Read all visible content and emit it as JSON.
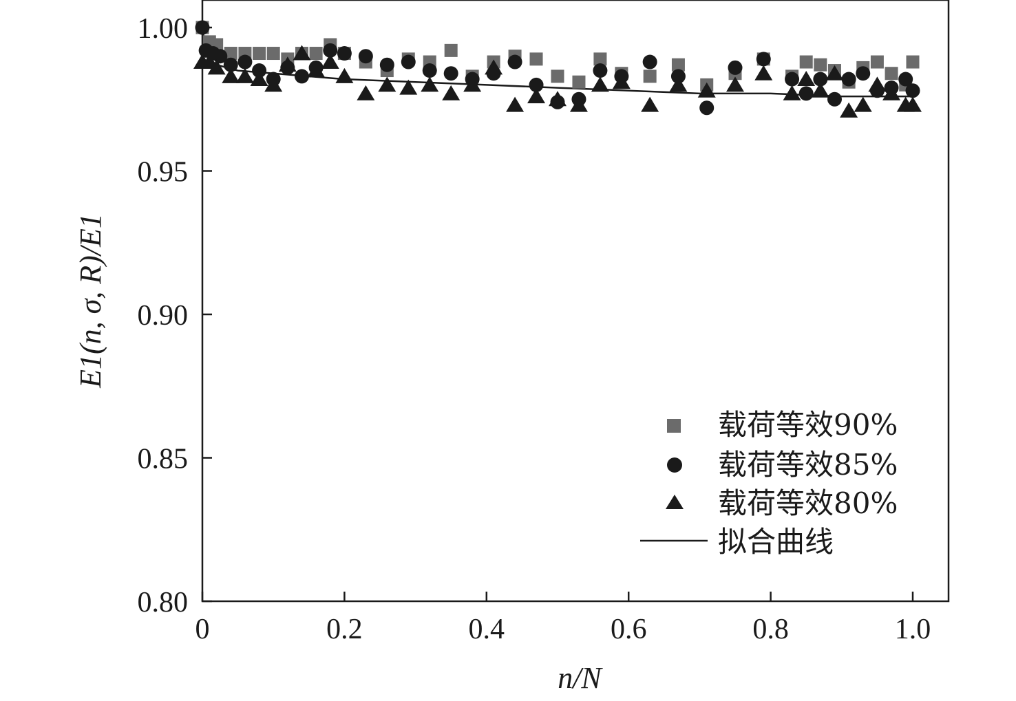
{
  "chart_data": {
    "type": "scatter",
    "xlabel": "n/N",
    "ylabel": "E1(n, σ, R)/E1",
    "xlim": [
      0,
      1.0
    ],
    "ylim": [
      0.8,
      1.0
    ],
    "x_ticks": [
      {
        "value": 0,
        "label": "0"
      },
      {
        "value": 0.2,
        "label": "0.2"
      },
      {
        "value": 0.4,
        "label": "0.4"
      },
      {
        "value": 0.6,
        "label": "0.6"
      },
      {
        "value": 0.8,
        "label": "0.8"
      },
      {
        "value": 1.0,
        "label": "1.0"
      }
    ],
    "y_ticks": [
      {
        "value": 0.8,
        "label": "0.80"
      },
      {
        "value": 0.85,
        "label": "0.85"
      },
      {
        "value": 0.9,
        "label": "0.90"
      },
      {
        "value": 0.95,
        "label": "0.95"
      },
      {
        "value": 1.0,
        "label": "1.00"
      }
    ],
    "grid": false,
    "legend_position": "bottom-right",
    "series": [
      {
        "name": "载荷等效90%",
        "marker": "square",
        "color": "#6b6b6b",
        "points": [
          [
            0.0,
            1.0
          ],
          [
            0.01,
            0.995
          ],
          [
            0.02,
            0.994
          ],
          [
            0.04,
            0.991
          ],
          [
            0.06,
            0.991
          ],
          [
            0.08,
            0.991
          ],
          [
            0.1,
            0.991
          ],
          [
            0.12,
            0.989
          ],
          [
            0.14,
            0.991
          ],
          [
            0.16,
            0.991
          ],
          [
            0.18,
            0.994
          ],
          [
            0.2,
            0.991
          ],
          [
            0.23,
            0.988
          ],
          [
            0.26,
            0.985
          ],
          [
            0.29,
            0.989
          ],
          [
            0.32,
            0.988
          ],
          [
            0.35,
            0.992
          ],
          [
            0.38,
            0.983
          ],
          [
            0.41,
            0.988
          ],
          [
            0.44,
            0.99
          ],
          [
            0.47,
            0.989
          ],
          [
            0.5,
            0.983
          ],
          [
            0.53,
            0.981
          ],
          [
            0.56,
            0.989
          ],
          [
            0.59,
            0.984
          ],
          [
            0.63,
            0.983
          ],
          [
            0.67,
            0.987
          ],
          [
            0.71,
            0.98
          ],
          [
            0.75,
            0.984
          ],
          [
            0.79,
            0.989
          ],
          [
            0.83,
            0.983
          ],
          [
            0.85,
            0.988
          ],
          [
            0.87,
            0.987
          ],
          [
            0.89,
            0.985
          ],
          [
            0.91,
            0.981
          ],
          [
            0.93,
            0.986
          ],
          [
            0.95,
            0.988
          ],
          [
            0.97,
            0.984
          ],
          [
            0.99,
            0.98
          ],
          [
            1.0,
            0.988
          ]
        ]
      },
      {
        "name": "载荷等效85%",
        "marker": "circle",
        "color": "#1a1a1a",
        "points": [
          [
            0.0,
            1.0
          ],
          [
            0.005,
            0.992
          ],
          [
            0.015,
            0.991
          ],
          [
            0.025,
            0.99
          ],
          [
            0.04,
            0.987
          ],
          [
            0.06,
            0.988
          ],
          [
            0.08,
            0.985
          ],
          [
            0.1,
            0.982
          ],
          [
            0.12,
            0.986
          ],
          [
            0.14,
            0.983
          ],
          [
            0.16,
            0.986
          ],
          [
            0.18,
            0.992
          ],
          [
            0.2,
            0.991
          ],
          [
            0.23,
            0.99
          ],
          [
            0.26,
            0.987
          ],
          [
            0.29,
            0.988
          ],
          [
            0.32,
            0.985
          ],
          [
            0.35,
            0.984
          ],
          [
            0.38,
            0.982
          ],
          [
            0.41,
            0.984
          ],
          [
            0.44,
            0.988
          ],
          [
            0.47,
            0.98
          ],
          [
            0.5,
            0.974
          ],
          [
            0.53,
            0.975
          ],
          [
            0.56,
            0.985
          ],
          [
            0.59,
            0.983
          ],
          [
            0.63,
            0.988
          ],
          [
            0.67,
            0.983
          ],
          [
            0.71,
            0.972
          ],
          [
            0.75,
            0.986
          ],
          [
            0.79,
            0.989
          ],
          [
            0.83,
            0.982
          ],
          [
            0.85,
            0.977
          ],
          [
            0.87,
            0.982
          ],
          [
            0.89,
            0.975
          ],
          [
            0.91,
            0.982
          ],
          [
            0.93,
            0.984
          ],
          [
            0.95,
            0.978
          ],
          [
            0.97,
            0.979
          ],
          [
            0.99,
            0.982
          ],
          [
            1.0,
            0.978
          ]
        ]
      },
      {
        "name": "载荷等效80%",
        "marker": "triangle",
        "color": "#1a1a1a",
        "points": [
          [
            0.0,
            0.988
          ],
          [
            0.01,
            0.988
          ],
          [
            0.02,
            0.986
          ],
          [
            0.04,
            0.983
          ],
          [
            0.06,
            0.983
          ],
          [
            0.08,
            0.982
          ],
          [
            0.1,
            0.98
          ],
          [
            0.12,
            0.987
          ],
          [
            0.14,
            0.991
          ],
          [
            0.16,
            0.985
          ],
          [
            0.18,
            0.988
          ],
          [
            0.2,
            0.983
          ],
          [
            0.23,
            0.977
          ],
          [
            0.26,
            0.98
          ],
          [
            0.29,
            0.979
          ],
          [
            0.32,
            0.98
          ],
          [
            0.35,
            0.977
          ],
          [
            0.38,
            0.98
          ],
          [
            0.41,
            0.986
          ],
          [
            0.44,
            0.973
          ],
          [
            0.47,
            0.976
          ],
          [
            0.5,
            0.975
          ],
          [
            0.53,
            0.973
          ],
          [
            0.56,
            0.98
          ],
          [
            0.59,
            0.981
          ],
          [
            0.63,
            0.973
          ],
          [
            0.67,
            0.98
          ],
          [
            0.71,
            0.978
          ],
          [
            0.75,
            0.98
          ],
          [
            0.79,
            0.984
          ],
          [
            0.83,
            0.977
          ],
          [
            0.85,
            0.982
          ],
          [
            0.87,
            0.978
          ],
          [
            0.89,
            0.984
          ],
          [
            0.91,
            0.971
          ],
          [
            0.93,
            0.973
          ],
          [
            0.95,
            0.98
          ],
          [
            0.97,
            0.977
          ],
          [
            0.99,
            0.973
          ],
          [
            1.0,
            0.973
          ]
        ]
      },
      {
        "name": "拟合曲线",
        "marker": "line",
        "color": "#1a1a1a",
        "points": [
          [
            0.0,
            1.0
          ],
          [
            0.005,
            0.991
          ],
          [
            0.01,
            0.989
          ],
          [
            0.02,
            0.987
          ],
          [
            0.05,
            0.985
          ],
          [
            0.1,
            0.984
          ],
          [
            0.2,
            0.982
          ],
          [
            0.3,
            0.981
          ],
          [
            0.4,
            0.98
          ],
          [
            0.5,
            0.979
          ],
          [
            0.6,
            0.978
          ],
          [
            0.7,
            0.977
          ],
          [
            0.8,
            0.977
          ],
          [
            0.9,
            0.976
          ],
          [
            1.0,
            0.976
          ]
        ]
      }
    ]
  }
}
